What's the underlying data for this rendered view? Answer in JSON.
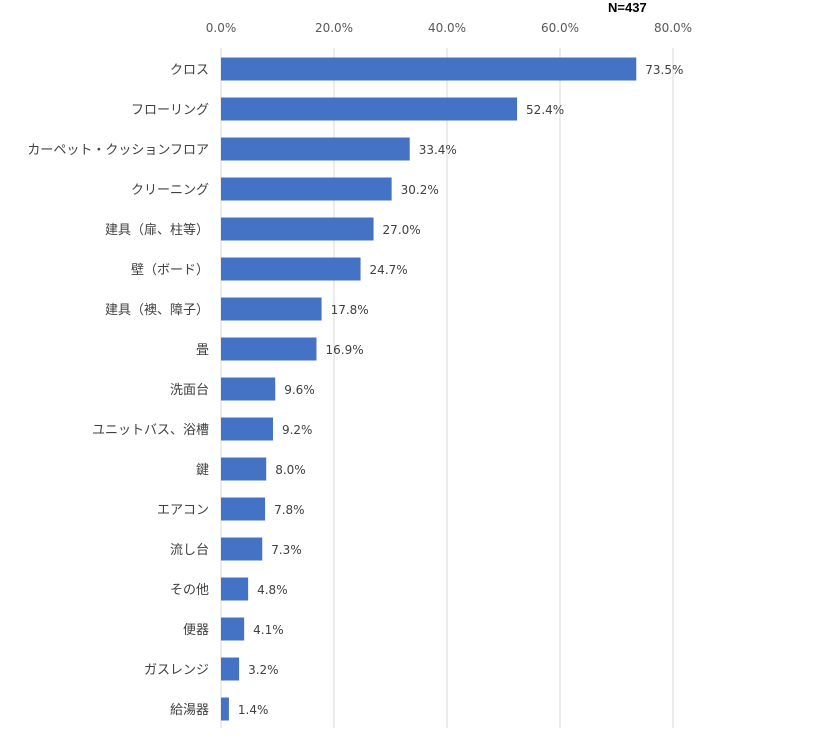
{
  "note": "N=437",
  "chart_data": {
    "type": "bar",
    "orientation": "horizontal",
    "categories": [
      "クロス",
      "フローリング",
      "カーペット・クッションフロア",
      "クリーニング",
      "建具（扉、柱等）",
      "壁（ボード）",
      "建具（襖、障子）",
      "畳",
      "洗面台",
      "ユニットバス、浴槽",
      "鍵",
      "エアコン",
      "流し台",
      "その他",
      "便器",
      "ガスレンジ",
      "給湯器"
    ],
    "values": [
      73.5,
      52.4,
      33.4,
      30.2,
      27.0,
      24.7,
      17.8,
      16.9,
      9.6,
      9.2,
      8.0,
      7.8,
      7.3,
      4.8,
      4.1,
      3.2,
      1.4
    ],
    "value_labels": [
      "73.5%",
      "52.4%",
      "33.4%",
      "30.2%",
      "27.0%",
      "24.7%",
      "17.8%",
      "16.9%",
      "9.6%",
      "9.2%",
      "8.0%",
      "7.8%",
      "7.3%",
      "4.8%",
      "4.1%",
      "3.2%",
      "1.4%"
    ],
    "ticks": [
      0,
      20,
      40,
      60,
      80
    ],
    "tick_labels": [
      "0.0%",
      "20.0%",
      "40.0%",
      "60.0%",
      "80.0%"
    ],
    "xlim": [
      0,
      80
    ],
    "axis_position": "top",
    "grid": true,
    "bar_color": "#4472c4",
    "grid_color": "#d9d9d9"
  }
}
